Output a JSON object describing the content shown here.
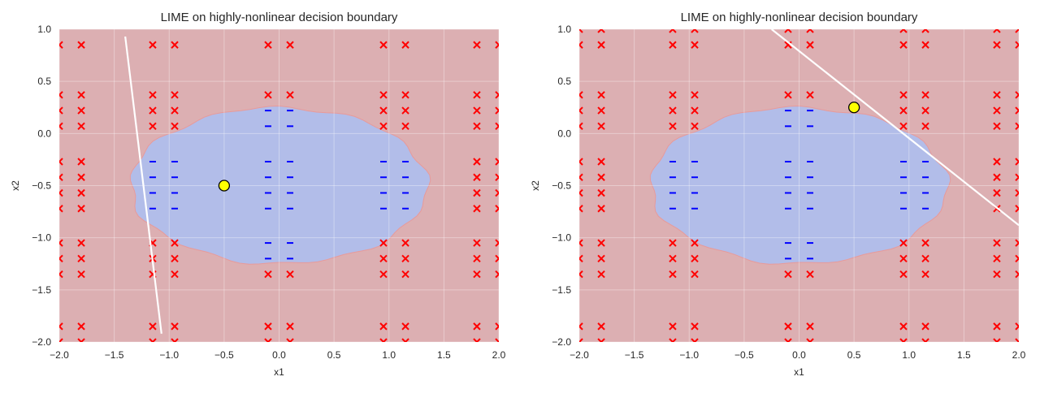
{
  "colors": {
    "positive_region": "#dcafb2",
    "negative_region": "#b2bde9",
    "positive_marker": "#ff0000",
    "negative_marker": "#0000ff",
    "explained_point": "#ffff00",
    "lime_line": "#ffffff",
    "grid": "#efcdd0"
  },
  "chart_data": [
    {
      "type": "scatter",
      "title": "LIME on highly-nonlinear decision boundary",
      "xlabel": "x1",
      "ylabel": "x2",
      "xlim": [
        -2.0,
        2.0
      ],
      "ylim": [
        -2.0,
        1.0
      ],
      "x_ticks": [
        "−2.0",
        "−1.5",
        "−1.0",
        "−0.5",
        "0.0",
        "0.5",
        "1.0",
        "1.5",
        "2.0"
      ],
      "y_ticks": [
        "−2.0",
        "−1.5",
        "−1.0",
        "−0.5",
        "0.0",
        "0.5",
        "1.0"
      ],
      "grid": true,
      "decision_region": {
        "shape": "ellipse",
        "center": [
          0.0,
          -0.5
        ],
        "radii": [
          1.35,
          0.75
        ],
        "inside_class": "-",
        "outside_class": "x"
      },
      "sample_x": [
        -2.0,
        -1.8,
        -1.15,
        -0.95,
        -0.1,
        0.1,
        0.95,
        1.15,
        1.8,
        2.0
      ],
      "sample_y": [
        0.85,
        0.37,
        0.22,
        0.07,
        -0.27,
        -0.42,
        -0.57,
        -0.72,
        -1.05,
        -1.2,
        -1.35,
        -1.85,
        -2.0
      ],
      "explained_point": [
        -0.5,
        -0.5
      ],
      "lime_line": [
        [
          -1.4,
          0.93
        ],
        [
          -1.07,
          -1.92
        ]
      ]
    },
    {
      "type": "scatter",
      "title": "LIME on highly-nonlinear decision boundary",
      "xlabel": "x1",
      "ylabel": "x2",
      "xlim": [
        -2.0,
        2.0
      ],
      "ylim": [
        -2.0,
        1.0
      ],
      "x_ticks": [
        "−2.0",
        "−1.5",
        "−1.0",
        "−0.5",
        "0.0",
        "0.5",
        "1.0",
        "1.5",
        "2.0"
      ],
      "y_ticks": [
        "−2.0",
        "−1.5",
        "−1.0",
        "−0.5",
        "0.0",
        "0.5",
        "1.0"
      ],
      "grid": true,
      "decision_region": {
        "shape": "ellipse",
        "center": [
          0.0,
          -0.5
        ],
        "radii": [
          1.35,
          0.75
        ],
        "inside_class": "-",
        "outside_class": "x"
      },
      "sample_x": [
        -2.0,
        -1.8,
        -1.15,
        -0.95,
        -0.1,
        0.1,
        0.95,
        1.15,
        1.8,
        2.0
      ],
      "sample_y": [
        1.0,
        0.85,
        0.37,
        0.22,
        0.07,
        -0.27,
        -0.42,
        -0.57,
        -0.72,
        -1.05,
        -1.2,
        -1.35,
        -1.85,
        -2.0
      ],
      "explained_point": [
        0.5,
        0.25
      ],
      "lime_line": [
        [
          -0.25,
          1.0
        ],
        [
          2.0,
          -0.88
        ]
      ]
    }
  ]
}
